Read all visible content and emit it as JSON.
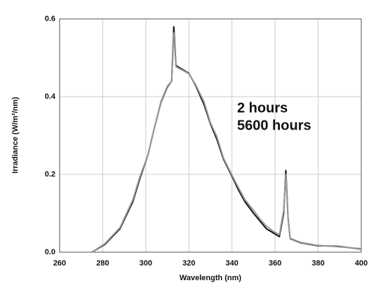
{
  "chart_data": {
    "type": "line",
    "x_label": "Wavelength (nm)",
    "y_label": "Irradiance (W/m²/nm)",
    "x": [
      275,
      281,
      288,
      294,
      297,
      301,
      304,
      307,
      310,
      312,
      313,
      314,
      317,
      320,
      323,
      327,
      330,
      333,
      336,
      340,
      343,
      346,
      350,
      353,
      356,
      359,
      362,
      364,
      365,
      366,
      367,
      372,
      379,
      389,
      400
    ],
    "series": [
      {
        "name": "2 hours",
        "color": "#111111",
        "values": [
          0,
          0.02,
          0.06,
          0.13,
          0.185,
          0.25,
          0.32,
          0.385,
          0.425,
          0.44,
          0.58,
          0.48,
          0.47,
          0.46,
          0.43,
          0.38,
          0.33,
          0.29,
          0.24,
          0.195,
          0.16,
          0.13,
          0.1,
          0.08,
          0.06,
          0.05,
          0.04,
          0.1,
          0.21,
          0.09,
          0.035,
          0.024,
          0.017,
          0.015,
          0.008
        ]
      },
      {
        "name": "5600 hours",
        "color": "#999999",
        "values": [
          0,
          0.022,
          0.063,
          0.135,
          0.19,
          0.25,
          0.32,
          0.387,
          0.427,
          0.44,
          0.564,
          0.477,
          0.468,
          0.459,
          0.432,
          0.387,
          0.333,
          0.297,
          0.243,
          0.198,
          0.166,
          0.135,
          0.108,
          0.085,
          0.067,
          0.054,
          0.045,
          0.108,
          0.2,
          0.09,
          0.036,
          0.025,
          0.018,
          0.014,
          0.009
        ]
      }
    ],
    "xlim": [
      260,
      400
    ],
    "xticks": [
      260,
      280,
      300,
      320,
      340,
      360,
      380,
      400
    ],
    "ylim": [
      0,
      0.6
    ],
    "yticks": [
      {
        "value": 0,
        "label": "0.0"
      },
      {
        "value": 0.2,
        "label": "0.2"
      },
      {
        "value": 0.4,
        "label": "0.4"
      },
      {
        "value": 0.6,
        "label": "0.6"
      }
    ],
    "grid": true
  }
}
